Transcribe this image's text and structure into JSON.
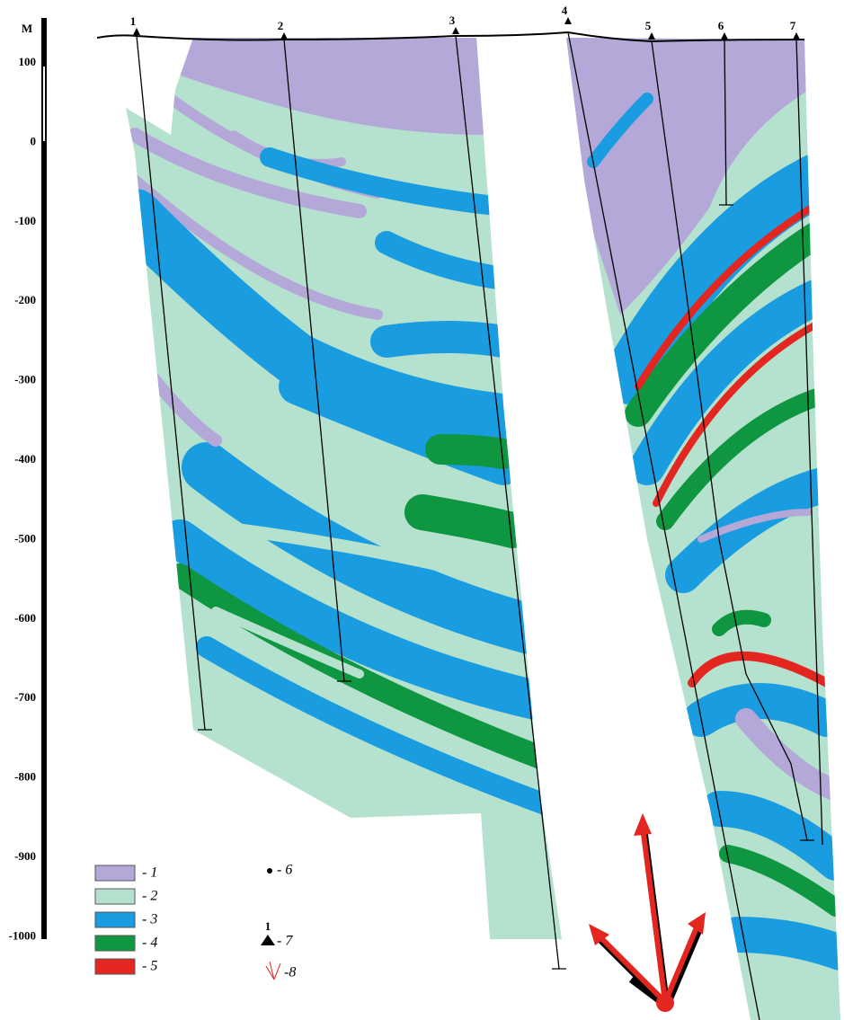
{
  "depth_scale": {
    "unit": "M",
    "labels": [
      "100",
      "0",
      "-100",
      "-200",
      "-300",
      "-400",
      "-500",
      "-600",
      "-700",
      "-800",
      "-900",
      "-1000"
    ]
  },
  "wells": [
    "1",
    "2",
    "3",
    "4",
    "5",
    "6",
    "7"
  ],
  "legend": {
    "items": [
      "- 1",
      "- 2",
      "- 3",
      "- 4",
      "- 5",
      "- 6",
      "- 7",
      "-8"
    ],
    "well_symbol_label": "1"
  }
}
